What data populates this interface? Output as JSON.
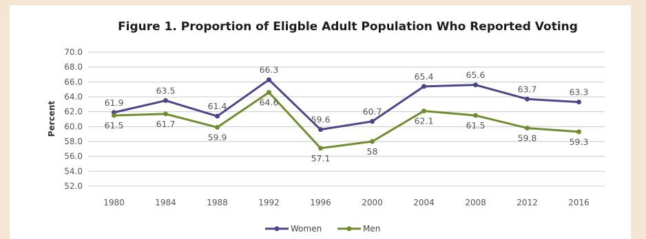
{
  "chart_data": {
    "type": "line",
    "title": "Figure 1. Proportion of Eligble Adult Population Who Reported Voting",
    "xlabel": "",
    "ylabel": "Percent",
    "categories": [
      "1980",
      "1984",
      "1988",
      "1992",
      "1996",
      "2000",
      "2004",
      "2008",
      "2012",
      "2016"
    ],
    "ylim": [
      52.0,
      70.0
    ],
    "yticks": [
      "52.0",
      "54.0",
      "56.0",
      "58.0",
      "60.0",
      "62.0",
      "64.0",
      "66.0",
      "68.0",
      "70.0"
    ],
    "grid": true,
    "legend_position": "bottom",
    "series": [
      {
        "name": "Women",
        "color": "#4a4589",
        "values": [
          61.9,
          63.5,
          61.4,
          66.3,
          59.6,
          60.7,
          65.4,
          65.6,
          63.7,
          63.3
        ],
        "labels": [
          "61.9",
          "63.5",
          "61.4",
          "66.3",
          "59.6",
          "60.7",
          "65.4",
          "65.6",
          "63.7",
          "63.3"
        ]
      },
      {
        "name": "Men",
        "color": "#6f8d2e",
        "values": [
          61.5,
          61.7,
          59.9,
          64.6,
          57.1,
          58,
          62.1,
          61.5,
          59.8,
          59.3
        ],
        "labels": [
          "61.5",
          "61.7",
          "59.9",
          "64.6",
          "57.1",
          "58",
          "62.1",
          "61.5",
          "59.8",
          "59.3"
        ]
      }
    ]
  }
}
